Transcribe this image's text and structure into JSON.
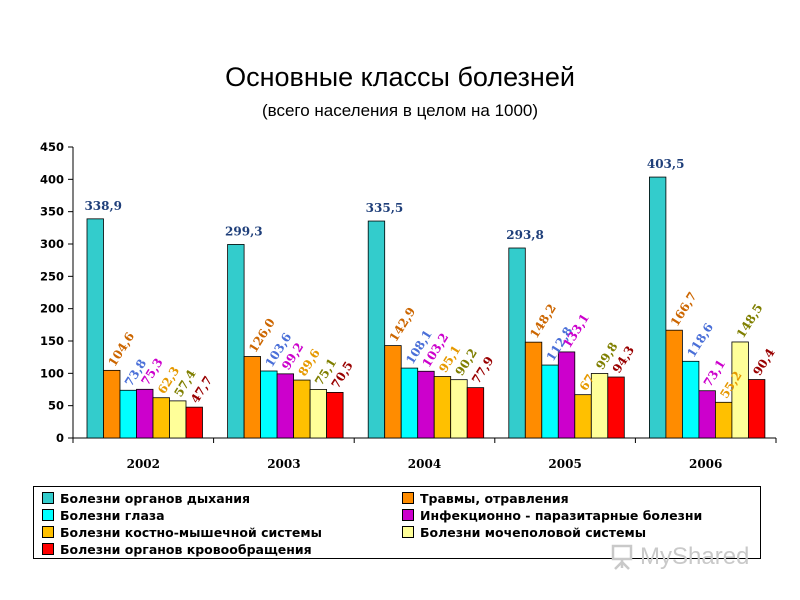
{
  "chart_data": {
    "type": "bar",
    "title": "Основные классы болезней",
    "subtitle": "(всего населения в целом на 1000)",
    "xlabel": "",
    "ylabel": "",
    "ylim": [
      0,
      450
    ],
    "yticks": [
      0,
      50,
      100,
      150,
      200,
      250,
      300,
      350,
      400,
      450
    ],
    "categories": [
      "2002",
      "2003",
      "2004",
      "2005",
      "2006"
    ],
    "legend_position": "bottom",
    "grid": false,
    "series": [
      {
        "name": "Болезни органов дыхания",
        "color": "#33cccc",
        "label_color": "#1f3f7a",
        "values": [
          338.9,
          299.3,
          335.5,
          293.8,
          403.5
        ],
        "labels": [
          "338,9",
          "299,3",
          "335,5",
          "293,8",
          "403,5"
        ]
      },
      {
        "name": "Травмы, отравления",
        "color": "#ff8c00",
        "label_color": "#cc6600",
        "values": [
          104.6,
          126.0,
          142.9,
          148.2,
          166.7
        ],
        "labels": [
          "104,6",
          "126,0",
          "142,9",
          "148,2",
          "166,7"
        ]
      },
      {
        "name": "Болезни глаза",
        "color": "#00ffff",
        "label_color": "#4a6fd8",
        "values": [
          73.8,
          103.6,
          108.1,
          112.8,
          118.6
        ],
        "labels": [
          "73,8",
          "103,6",
          "108,1",
          "112,8",
          "118,6"
        ]
      },
      {
        "name": "Инфекционно - паразитарные болезни",
        "color": "#cc00cc",
        "label_color": "#cc00cc",
        "values": [
          75.3,
          99.2,
          103.2,
          133.1,
          73.1
        ],
        "labels": [
          "75,3",
          "99,2",
          "103,2",
          "133,1",
          "73,1"
        ]
      },
      {
        "name": "Болезни костно-мышечной системы",
        "color": "#ffc000",
        "label_color": "#e69900",
        "values": [
          62.3,
          89.6,
          95.1,
          67,
          55.2
        ],
        "labels": [
          "62,3",
          "89,6",
          "95,1",
          "67",
          "55,2"
        ]
      },
      {
        "name": "Болезни мочеполовой системы",
        "color": "#ffff99",
        "label_color": "#7f7f00",
        "values": [
          57.4,
          75.1,
          90.2,
          99.8,
          148.5
        ],
        "labels": [
          "57,4",
          "75,1",
          "90,2",
          "99,8",
          "148,5"
        ]
      },
      {
        "name": "Болезни органов кровообращения",
        "color": "#ff0000",
        "label_color": "#990000",
        "values": [
          47.7,
          70.5,
          77.9,
          94.3,
          90.4
        ],
        "labels": [
          "47,7",
          "70,5",
          "77,9",
          "94,3",
          "90,4"
        ]
      }
    ]
  },
  "watermark": {
    "text": "MyShared",
    "icon": "presentation-board-icon"
  }
}
